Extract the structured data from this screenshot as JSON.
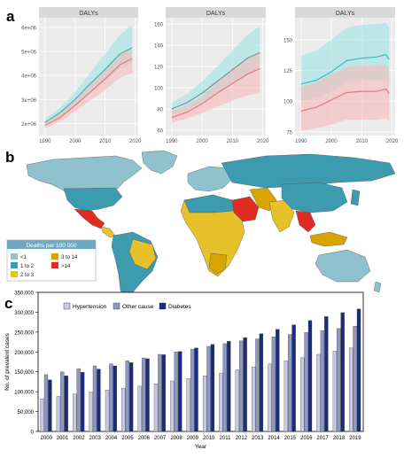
{
  "panel_labels": {
    "a": "a",
    "b": "b",
    "c": "c"
  },
  "colors": {
    "facet_strip": "#d9d9d9",
    "panel_bg": "#ebebeb",
    "cyan_band": "#9fe4e4",
    "cyan_line": "#3cb8c0",
    "pink_band": "#f6b9b9",
    "pink_line": "#e07a7a",
    "grey_band": "#c9c9c9",
    "grey_line": "#8a8a8a",
    "map_ocean": "#ffffff",
    "map_lt1": "#8fc1cf",
    "map_1to2": "#3d9bb0",
    "map_2to3": "#e6c12a",
    "map_3to14": "#d7a400",
    "map_gt14": "#e02b20",
    "bar_hypertension": "#c5cbe0",
    "bar_other": "#8e98c2",
    "bar_diabetes": "#1b2d7a"
  },
  "map_legend": {
    "title": "Deaths per 100 000",
    "items": [
      {
        "label": "<1",
        "color": "#8fc1cf"
      },
      {
        "label": "1 to 2",
        "color": "#3d9bb0"
      },
      {
        "label": "2 to 3",
        "color": "#e6c12a"
      },
      {
        "label": "3 to 14",
        "color": "#d7a400"
      },
      {
        "label": ">14",
        "color": "#e02b20"
      }
    ]
  },
  "chart_data": [
    {
      "type": "line",
      "title": "DALYs",
      "x": [
        1990,
        1995,
        2000,
        2005,
        2010,
        2015,
        2019
      ],
      "xticks": [
        1990,
        2000,
        2010,
        2020
      ],
      "xlim": [
        1988,
        2021
      ],
      "yticks": [
        2000000,
        3000000,
        4000000,
        5000000,
        6000000
      ],
      "ytick_labels": [
        "2e+06",
        "3e+06",
        "4e+06",
        "5e+06",
        "6e+06"
      ],
      "ylim": [
        1500000,
        6400000
      ],
      "series": [
        {
          "values": [
            2050000,
            2450000,
            3000000,
            3650000,
            4250000,
            4900000,
            5150000
          ],
          "upper": [
            2200000,
            2650000,
            3300000,
            4100000,
            4900000,
            5700000,
            6100000
          ],
          "lower": [
            1950000,
            2300000,
            2750000,
            3300000,
            3800000,
            4300000,
            4500000
          ],
          "color": "#3cb8c0",
          "band": "#9fe4e4"
        },
        {
          "values": [
            1920000,
            2250000,
            2750000,
            3300000,
            3850000,
            4450000,
            4700000
          ],
          "upper": [
            2050000,
            2450000,
            3000000,
            3650000,
            4300000,
            4950000,
            5200000
          ],
          "lower": [
            1800000,
            2100000,
            2500000,
            2950000,
            3400000,
            3900000,
            4100000
          ],
          "color": "#e07a7a",
          "band": "#f6b9b9"
        }
      ]
    },
    {
      "type": "line",
      "title": "DALYs",
      "x": [
        1990,
        1995,
        2000,
        2005,
        2010,
        2015,
        2019
      ],
      "xticks": [
        1990,
        2000,
        2010,
        2020
      ],
      "xlim": [
        1988,
        2021
      ],
      "yticks": [
        60,
        80,
        100,
        120,
        140,
        160
      ],
      "ytick_labels": [
        "60",
        "80",
        "100",
        "120",
        "140",
        "160"
      ],
      "ylim": [
        55,
        166
      ],
      "series": [
        {
          "values": [
            80,
            86,
            95,
            106,
            117,
            128,
            133
          ],
          "upper": [
            86,
            94,
            106,
            120,
            135,
            150,
            158
          ],
          "lower": [
            74,
            79,
            86,
            95,
            104,
            113,
            117
          ],
          "color": "#8a8a8a",
          "band": "#9fe4e4"
        },
        {
          "values": [
            72,
            77,
            85,
            95,
            104,
            113,
            118
          ],
          "upper": [
            78,
            83,
            92,
            104,
            116,
            128,
            134
          ],
          "lower": [
            67,
            71,
            76,
            82,
            88,
            93,
            95
          ],
          "color": "#e07a7a",
          "band": "#f6b9b9"
        }
      ]
    },
    {
      "type": "line",
      "title": "DALYs",
      "x": [
        1990,
        1995,
        2000,
        2005,
        2010,
        2015,
        2018,
        2019
      ],
      "xticks": [
        1990,
        2000,
        2010,
        2020
      ],
      "xlim": [
        1988,
        2021
      ],
      "yticks": [
        75,
        100,
        125,
        150
      ],
      "ytick_labels": [
        "75",
        "100",
        "125",
        "150"
      ],
      "ylim": [
        72,
        168
      ],
      "series": [
        {
          "values": [
            114,
            117,
            124,
            133,
            135,
            136,
            138,
            134
          ],
          "upper": [
            137,
            141,
            150,
            160,
            162,
            163,
            164,
            160
          ],
          "lower": [
            100,
            103,
            108,
            115,
            117,
            117,
            119,
            115
          ],
          "color": "#3cb8c0",
          "band": "#9fe4e4"
        },
        {
          "values": [
            92,
            95,
            101,
            107,
            108,
            108,
            110,
            106
          ],
          "upper": [
            112,
            115,
            122,
            128,
            129,
            129,
            130,
            126
          ],
          "lower": [
            76,
            78,
            81,
            85,
            85,
            85,
            86,
            83
          ],
          "color": "#e07a7a",
          "band": "#f6b9b9"
        }
      ]
    },
    {
      "type": "bar",
      "categories": [
        "2000",
        "2001",
        "2002",
        "2003",
        "2004",
        "2005",
        "2006",
        "2007",
        "2008",
        "2009",
        "2010",
        "2011",
        "2012",
        "2013",
        "2014",
        "2015",
        "2016",
        "2017",
        "2018",
        "2019"
      ],
      "series": [
        {
          "name": "Hypertension",
          "values": [
            82000,
            88000,
            94000,
            99000,
            104000,
            109000,
            114000,
            120000,
            127000,
            133000,
            140000,
            147000,
            155000,
            162000,
            170000,
            178000,
            186000,
            194000,
            202000,
            210000
          ]
        },
        {
          "name": "Other cause",
          "values": [
            143000,
            150000,
            158000,
            165000,
            170000,
            178000,
            185000,
            194000,
            200000,
            207000,
            214000,
            221000,
            228000,
            233000,
            238000,
            244000,
            249000,
            254000,
            259000,
            265000
          ]
        },
        {
          "name": "Diabetes",
          "values": [
            130000,
            140000,
            149000,
            157000,
            165000,
            173000,
            183000,
            193000,
            201000,
            210000,
            219000,
            227000,
            236000,
            246000,
            257000,
            268000,
            279000,
            289000,
            299000,
            308000
          ]
        }
      ],
      "xlabel": "Year",
      "ylabel": "No. of prevalent cases",
      "ylim": [
        0,
        350000
      ],
      "yticks": [
        0,
        50000,
        100000,
        150000,
        200000,
        250000,
        300000,
        350000
      ],
      "ytick_labels": [
        "0",
        "50,000",
        "100,000",
        "150,000",
        "200,000",
        "250,000",
        "300,000",
        "350,000"
      ],
      "legend_position": "top-left"
    }
  ]
}
